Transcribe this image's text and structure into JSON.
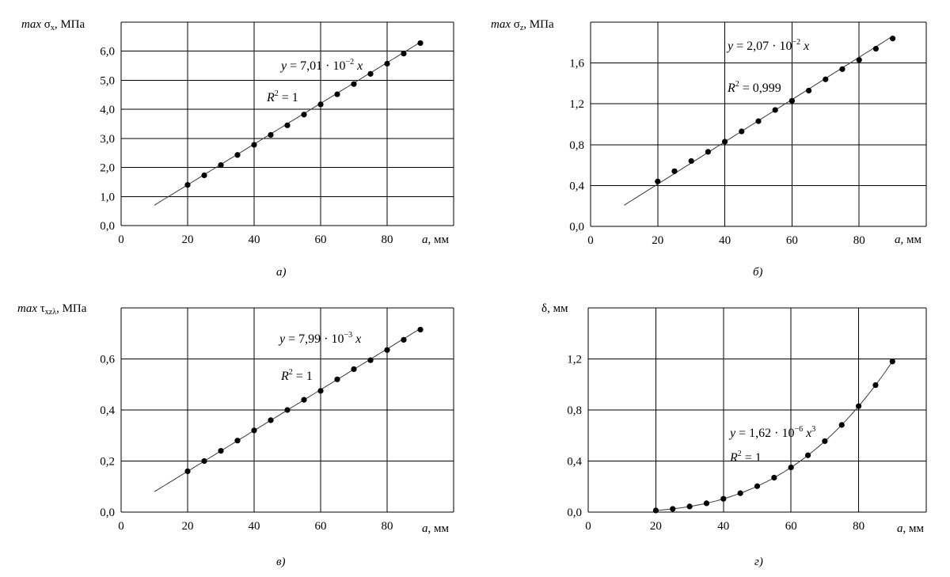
{
  "chart_data": [
    {
      "type": "scatter",
      "ylabel": "max σx, МПа",
      "xlabel": "а, мм",
      "caption": "а)",
      "xlim": [
        0,
        100
      ],
      "ylim": [
        0,
        7.0
      ],
      "x_ticks": [
        "0",
        "20",
        "40",
        "60",
        "80"
      ],
      "y_ticks": [
        "0,0",
        "1,0",
        "2,0",
        "3,0",
        "4,0",
        "5,0",
        "6,0"
      ],
      "grid": true,
      "trend": {
        "form": "linear",
        "coef": 0.0701,
        "range": [
          10,
          90
        ]
      },
      "equation_lines": [
        "y = 7,01 · 10⁻² x",
        "R² = 1"
      ],
      "series": [
        {
          "x": [
            20,
            25,
            30,
            35,
            40,
            45,
            50,
            55,
            60,
            65,
            70,
            75,
            80,
            85,
            90
          ],
          "y": [
            1.4,
            1.73,
            2.08,
            2.43,
            2.78,
            3.12,
            3.45,
            3.82,
            4.17,
            4.52,
            4.87,
            5.22,
            5.57,
            5.92,
            6.28
          ]
        }
      ]
    },
    {
      "type": "scatter",
      "ylabel": "max σz, МПа",
      "xlabel": "а, мм",
      "caption": "б)",
      "xlim": [
        0,
        100
      ],
      "ylim": [
        0,
        2.0
      ],
      "x_ticks": [
        "0",
        "20",
        "40",
        "60",
        "80"
      ],
      "y_ticks": [
        "0,0",
        "0,4",
        "0,8",
        "1,2",
        "1,6"
      ],
      "grid": true,
      "trend": {
        "form": "linear",
        "coef": 0.0207,
        "range": [
          10,
          90
        ]
      },
      "equation_lines": [
        "y = 2,07 · 10⁻² x",
        "R² = 0,999"
      ],
      "series": [
        {
          "x": [
            20,
            25,
            30,
            35,
            40,
            45,
            50,
            55,
            60,
            65,
            70,
            75,
            80,
            85,
            90
          ],
          "y": [
            0.44,
            0.54,
            0.64,
            0.73,
            0.83,
            0.93,
            1.03,
            1.14,
            1.23,
            1.33,
            1.44,
            1.54,
            1.63,
            1.74,
            1.84
          ]
        }
      ]
    },
    {
      "type": "scatter",
      "ylabel": "max τxzλ, МПа",
      "xlabel": "а, мм",
      "caption": "в)",
      "xlim": [
        0,
        100
      ],
      "ylim": [
        0,
        0.8
      ],
      "x_ticks": [
        "0",
        "20",
        "40",
        "60",
        "80"
      ],
      "y_ticks": [
        "0,0",
        "0,2",
        "0,4",
        "0,6"
      ],
      "grid": true,
      "trend": {
        "form": "linear",
        "coef": 0.00799,
        "range": [
          10,
          90
        ]
      },
      "equation_lines": [
        "y = 7,99 · 10⁻³ x",
        "R² = 1"
      ],
      "series": [
        {
          "x": [
            20,
            25,
            30,
            35,
            40,
            45,
            50,
            55,
            60,
            65,
            70,
            75,
            80,
            85,
            90
          ],
          "y": [
            0.16,
            0.2,
            0.24,
            0.28,
            0.32,
            0.36,
            0.4,
            0.44,
            0.475,
            0.52,
            0.56,
            0.595,
            0.635,
            0.675,
            0.715
          ]
        }
      ]
    },
    {
      "type": "scatter",
      "ylabel": "δ, мм",
      "xlabel": "а, мм",
      "caption": "г)",
      "xlim": [
        0,
        100
      ],
      "ylim": [
        0,
        1.6
      ],
      "x_ticks": [
        "0",
        "20",
        "40",
        "60",
        "80"
      ],
      "y_ticks": [
        "0,0",
        "0,4",
        "0,8",
        "1,2"
      ],
      "grid": true,
      "trend": {
        "form": "cubic",
        "coef": 1.62e-06,
        "range": [
          20,
          90
        ]
      },
      "equation_lines": [
        "y = 1,62 · 10⁻⁶ x³",
        "R² = 1"
      ],
      "series": [
        {
          "x": [
            20,
            25,
            30,
            35,
            40,
            45,
            50,
            55,
            60,
            65,
            70,
            75,
            80,
            85,
            90
          ],
          "y": [
            0.013,
            0.025,
            0.044,
            0.069,
            0.104,
            0.148,
            0.203,
            0.27,
            0.35,
            0.445,
            0.556,
            0.683,
            0.83,
            0.995,
            1.18
          ]
        }
      ]
    }
  ]
}
